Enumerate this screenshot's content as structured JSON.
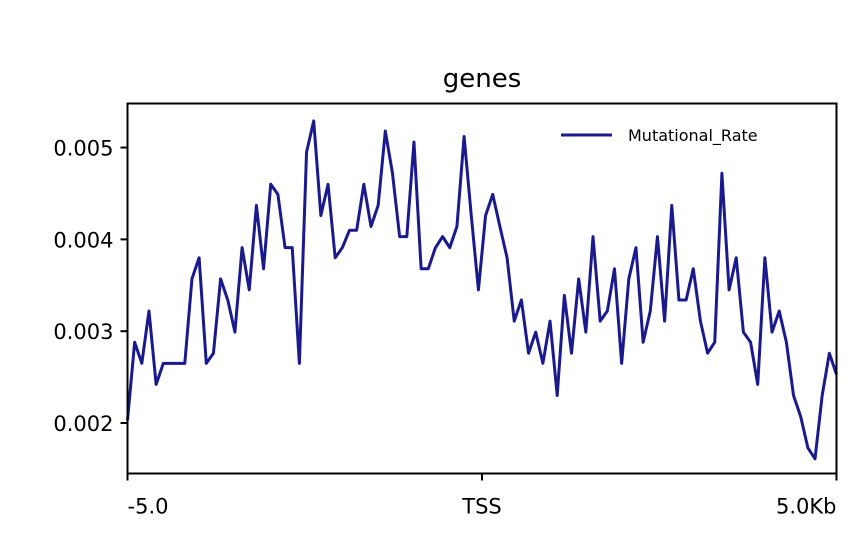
{
  "chart_data": {
    "type": "line",
    "title": "genes",
    "xlabel": "",
    "ylabel": "",
    "x_tick_labels": [
      "-5.0",
      "TSS",
      "5.0Kb"
    ],
    "x_tick_values": [
      0,
      50,
      100
    ],
    "xlim": [
      0,
      100
    ],
    "y_ticks": [
      0.002,
      0.003,
      0.004,
      0.005
    ],
    "y_tick_labels": [
      "0.002",
      "0.003",
      "0.004",
      "0.005"
    ],
    "ylim": [
      0.00145,
      0.00548
    ],
    "grid": false,
    "legend_position": "top-right",
    "series": [
      {
        "name": "Mutational_Rate",
        "color": "#1a1a8c",
        "values": [
          0.00203,
          0.00288,
          0.00265,
          0.00322,
          0.00242,
          0.00265,
          0.00265,
          0.00265,
          0.00265,
          0.00357,
          0.0038,
          0.00265,
          0.00276,
          0.00357,
          0.00334,
          0.00299,
          0.00391,
          0.00345,
          0.00437,
          0.00368,
          0.0046,
          0.00449,
          0.00391,
          0.00391,
          0.00265,
          0.00495,
          0.00529,
          0.00426,
          0.0046,
          0.0038,
          0.00391,
          0.0041,
          0.0041,
          0.0046,
          0.00414,
          0.00437,
          0.00518,
          0.00472,
          0.00403,
          0.00403,
          0.00506,
          0.00368,
          0.00368,
          0.00391,
          0.00403,
          0.00391,
          0.00414,
          0.00512,
          0.00426,
          0.00345,
          0.00426,
          0.00449,
          0.00414,
          0.0038,
          0.00311,
          0.00334,
          0.00276,
          0.00299,
          0.00265,
          0.00311,
          0.0023,
          0.00339,
          0.00276,
          0.00357,
          0.00299,
          0.00403,
          0.00311,
          0.00322,
          0.00368,
          0.00265,
          0.00357,
          0.00391,
          0.00288,
          0.00322,
          0.00403,
          0.00311,
          0.00437,
          0.00334,
          0.00334,
          0.00368,
          0.00311,
          0.00276,
          0.00288,
          0.00472,
          0.00345,
          0.0038,
          0.00299,
          0.00288,
          0.00242,
          0.0038,
          0.00299,
          0.00322,
          0.00288,
          0.0023,
          0.00207,
          0.00173,
          0.00161,
          0.0023,
          0.00276,
          0.00253
        ]
      }
    ]
  }
}
